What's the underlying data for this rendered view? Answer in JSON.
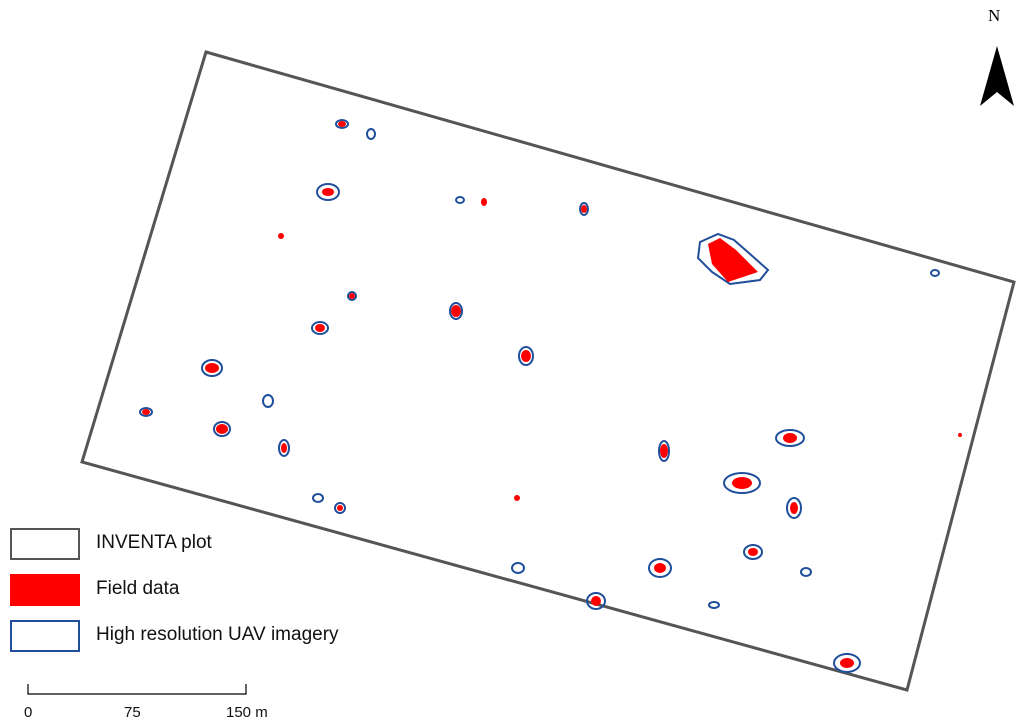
{
  "legend": {
    "items": [
      {
        "label": "INVENTA plot",
        "symbol": "outline-gray"
      },
      {
        "label": "Field data",
        "symbol": "fill-red"
      },
      {
        "label": "High resolution UAV imagery",
        "symbol": "outline-blue"
      }
    ]
  },
  "north_arrow": {
    "letter": "N"
  },
  "scale_bar": {
    "ticks": [
      "0",
      "75",
      "150 m"
    ]
  },
  "colors": {
    "plot_outline": "#555555",
    "field_data": "#ff0000",
    "uav_outline": "#1f4e9b"
  }
}
